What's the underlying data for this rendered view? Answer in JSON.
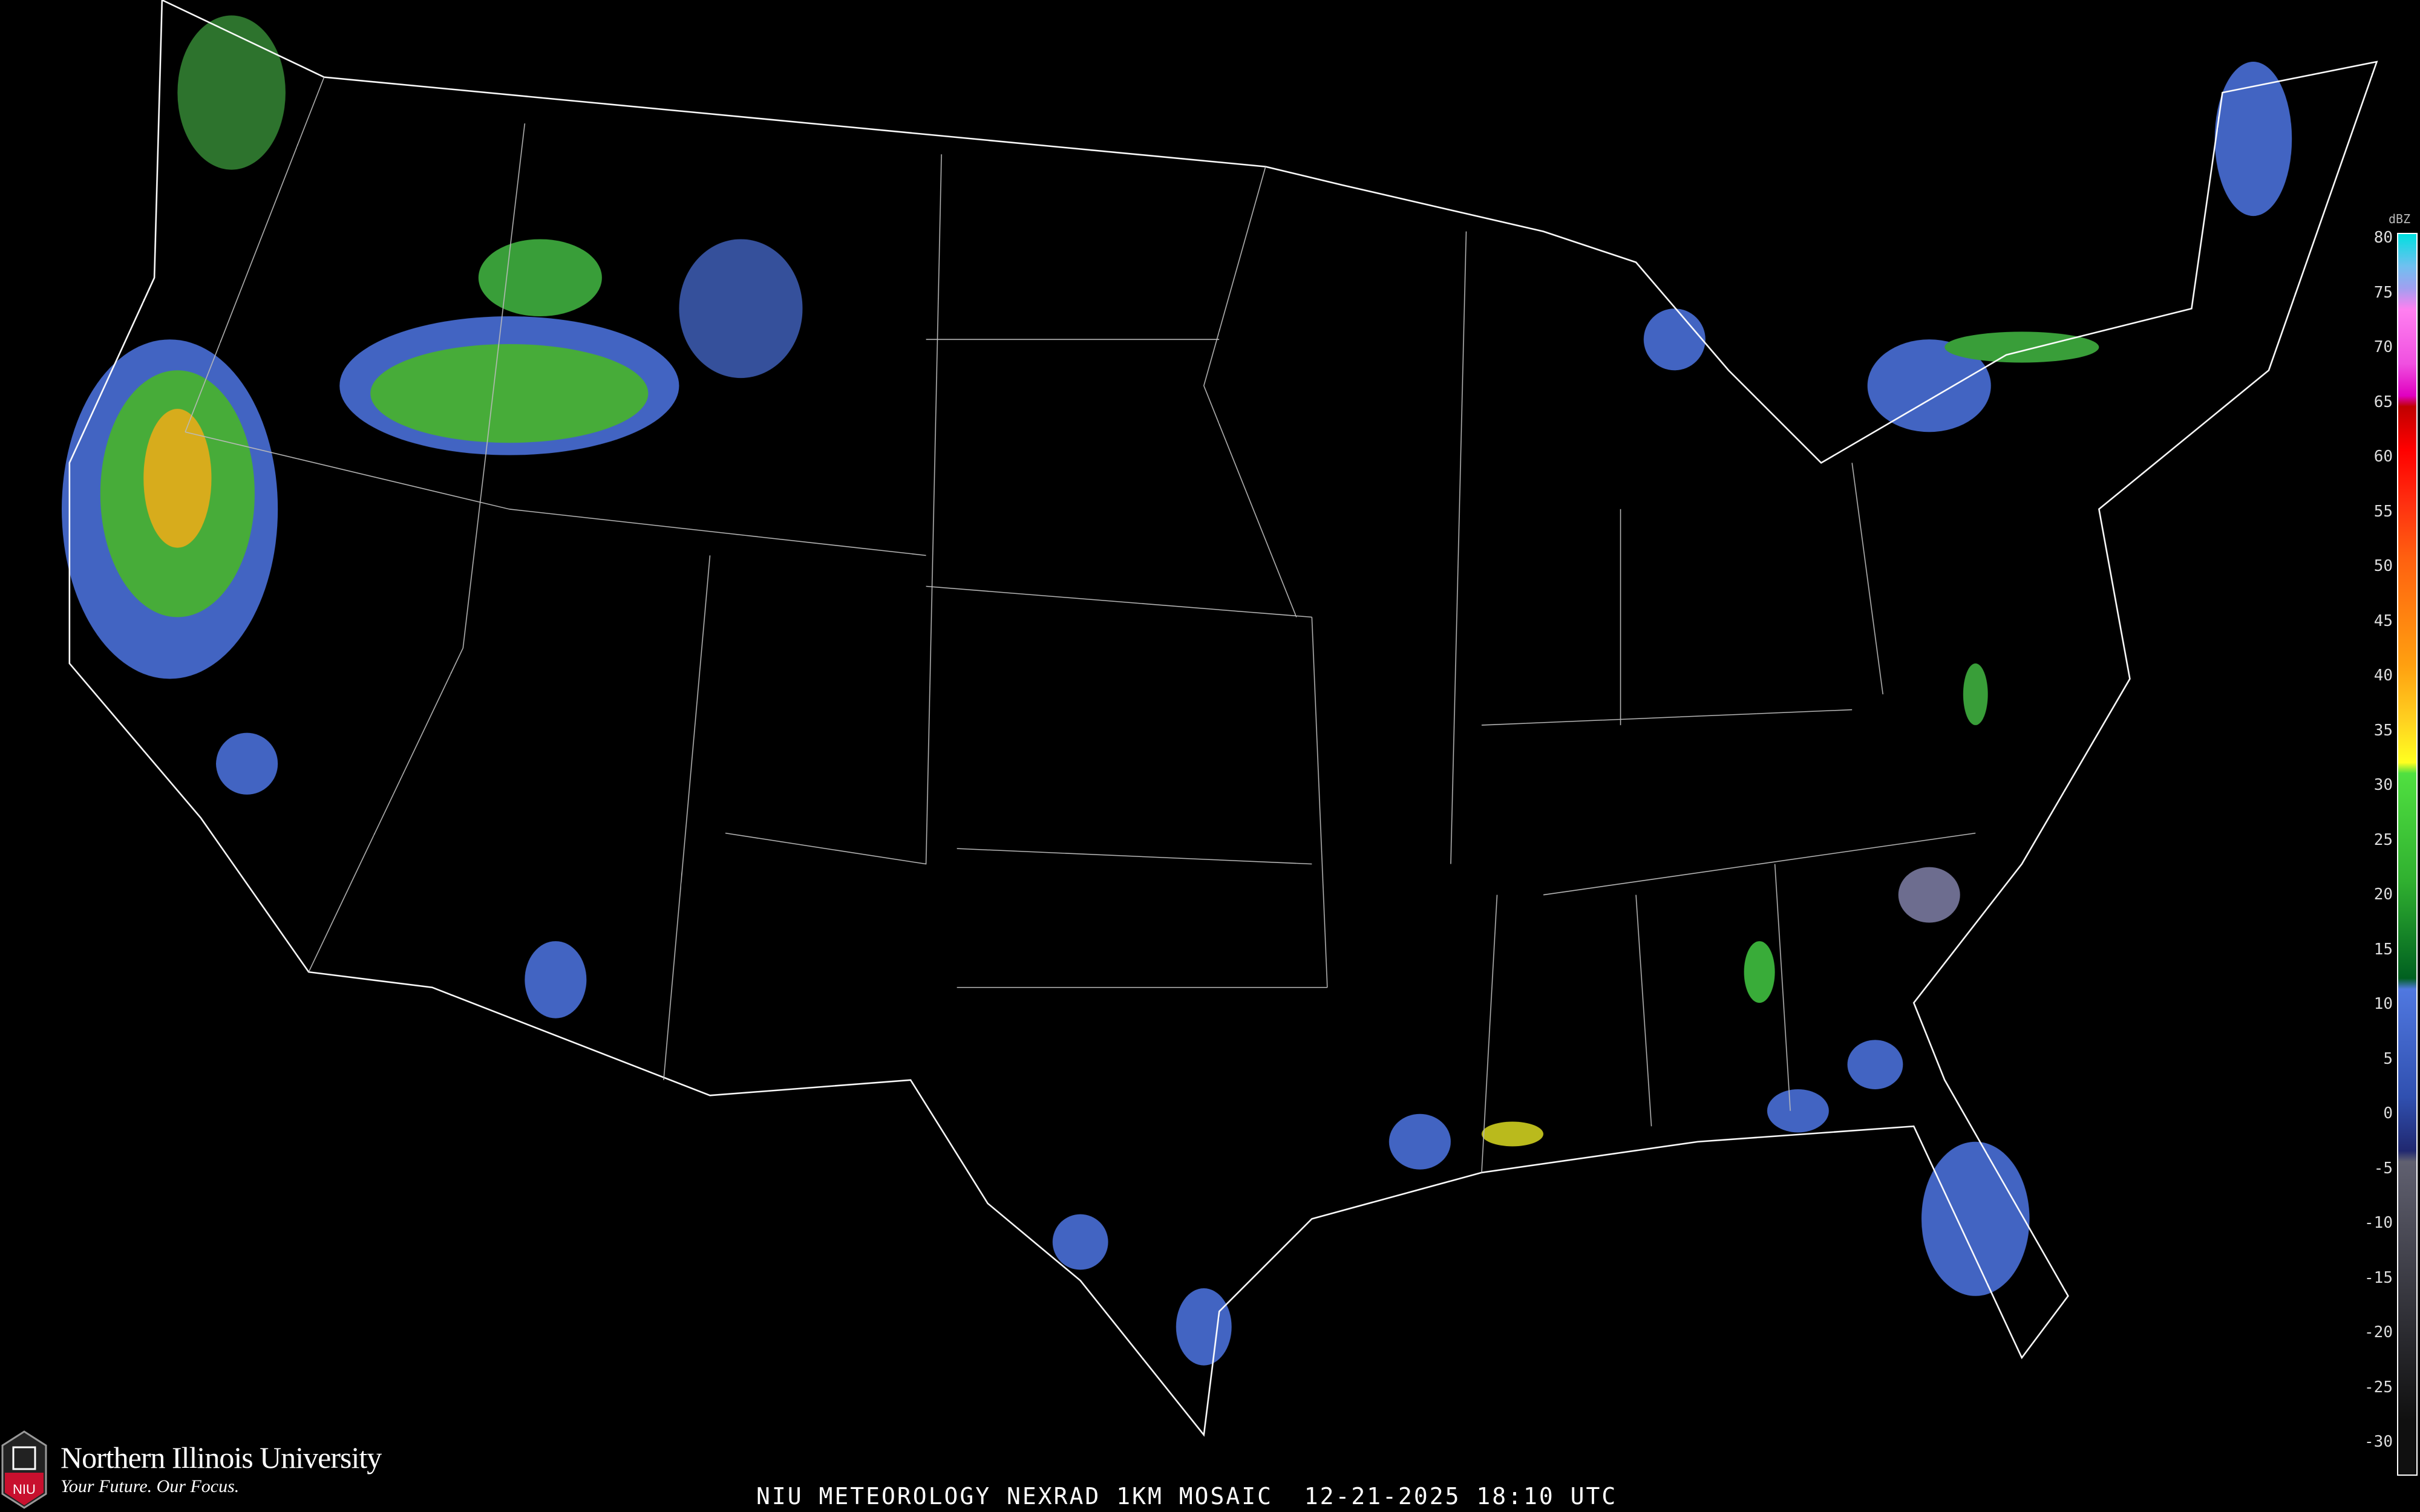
{
  "title": "NIU METEOROLOGY NEXRAD 1KM MOSAIC  12-21-2025 18:10 UTC",
  "logo": {
    "name": "Northern Illinois University",
    "tagline": "Your Future. Our Focus.",
    "shield_text": "NIU",
    "brand_color": "#c8102e"
  },
  "legend": {
    "unit": "dBZ",
    "ticks": [
      "80",
      "75",
      "70",
      "65",
      "60",
      "55",
      "50",
      "45",
      "40",
      "35",
      "30",
      "25",
      "20",
      "15",
      "10",
      "5",
      "0",
      "-5",
      "-10",
      "-15",
      "-20",
      "-25",
      "-30"
    ],
    "colors": [
      {
        "dbz": 80,
        "hex": "#00e0e0"
      },
      {
        "dbz": 77,
        "hex": "#70c0f0"
      },
      {
        "dbz": 75,
        "hex": "#a0a0f0"
      },
      {
        "dbz": 73,
        "hex": "#ff80f0"
      },
      {
        "dbz": 68,
        "hex": "#f050e0"
      },
      {
        "dbz": 65,
        "hex": "#e000c0"
      },
      {
        "dbz": 64,
        "hex": "#c00000"
      },
      {
        "dbz": 60,
        "hex": "#ff0000"
      },
      {
        "dbz": 55,
        "hex": "#ff3010"
      },
      {
        "dbz": 50,
        "hex": "#ff6010"
      },
      {
        "dbz": 45,
        "hex": "#ff8010"
      },
      {
        "dbz": 40,
        "hex": "#ffa010"
      },
      {
        "dbz": 35,
        "hex": "#ffd020"
      },
      {
        "dbz": 31,
        "hex": "#ffff20"
      },
      {
        "dbz": 30,
        "hex": "#50e040"
      },
      {
        "dbz": 20,
        "hex": "#30b030"
      },
      {
        "dbz": 11,
        "hex": "#006020"
      },
      {
        "dbz": 10,
        "hex": "#5078e0"
      },
      {
        "dbz": 0,
        "hex": "#3050b0"
      },
      {
        "dbz": -5,
        "hex": "#202870"
      },
      {
        "dbz": -6,
        "hex": "#606070"
      },
      {
        "dbz": -30,
        "hex": "#101010"
      }
    ]
  }
}
